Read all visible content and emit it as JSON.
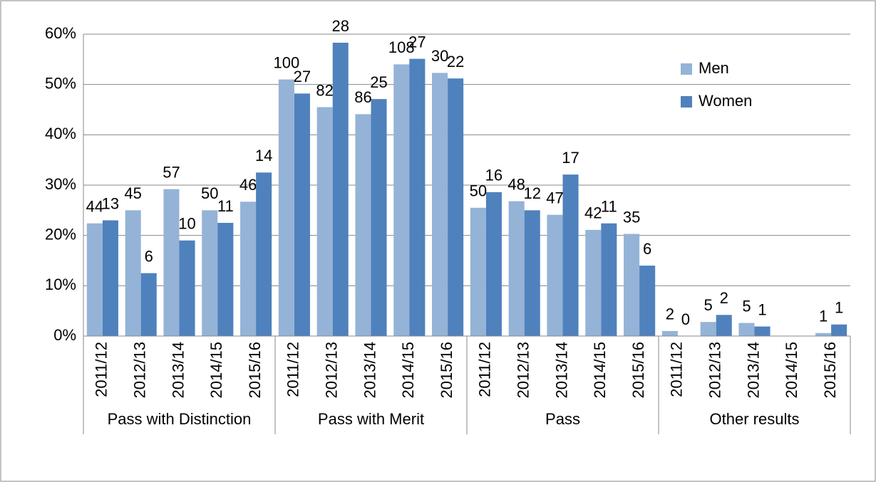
{
  "chart_data": {
    "type": "bar",
    "groups": [
      {
        "name": "Pass with Distinction",
        "categories": [
          "2011/12",
          "2012/13",
          "2013/14",
          "2014/15",
          "2015/16"
        ]
      },
      {
        "name": "Pass with Merit",
        "categories": [
          "2011/12",
          "2012/13",
          "2013/14",
          "2014/15",
          "2015/16"
        ]
      },
      {
        "name": "Pass",
        "categories": [
          "2011/12",
          "2012/13",
          "2013/14",
          "2014/15",
          "2015/16"
        ]
      },
      {
        "name": "Other results",
        "categories": [
          "2011/12",
          "2012/13",
          "2013/14",
          "2014/15",
          "2015/16"
        ]
      }
    ],
    "series": [
      {
        "name": "Men",
        "color": "#95b3d7",
        "values": [
          22.4,
          25,
          29.2,
          25,
          26.7,
          51,
          45.5,
          44.1,
          54,
          52.3,
          25.5,
          26.8,
          24.1,
          21.1,
          20.3,
          1,
          2.8,
          2.6,
          null,
          0.6
        ],
        "data_labels": [
          "44",
          "45",
          "57",
          "50",
          "46",
          "100",
          "82",
          "86",
          "108",
          "30",
          "50",
          "48",
          "47",
          "42",
          "35",
          "2",
          "5",
          "5",
          null,
          "1"
        ]
      },
      {
        "name": "Women",
        "color": "#4f81bd",
        "values": [
          23,
          12.5,
          19,
          22.5,
          32.5,
          48.2,
          58.3,
          47.1,
          55.1,
          51.2,
          28.6,
          25,
          32.1,
          22.4,
          14,
          0,
          4.2,
          1.9,
          null,
          2.3
        ],
        "data_labels": [
          "13",
          "6",
          "10",
          "11",
          "14",
          "27",
          "28",
          "25",
          "27",
          "22",
          "16",
          "12",
          "17",
          "11",
          "6",
          "0",
          "2",
          "1",
          null,
          "1"
        ]
      }
    ],
    "ylim": [
      0,
      60
    ],
    "yticks": [
      {
        "value": 0,
        "label": "0%"
      },
      {
        "value": 10,
        "label": "10%"
      },
      {
        "value": 20,
        "label": "20%"
      },
      {
        "value": 30,
        "label": "30%"
      },
      {
        "value": 40,
        "label": "40%"
      },
      {
        "value": 50,
        "label": "50%"
      },
      {
        "value": 60,
        "label": "60%"
      }
    ],
    "grid": true,
    "legend": "top-right"
  }
}
